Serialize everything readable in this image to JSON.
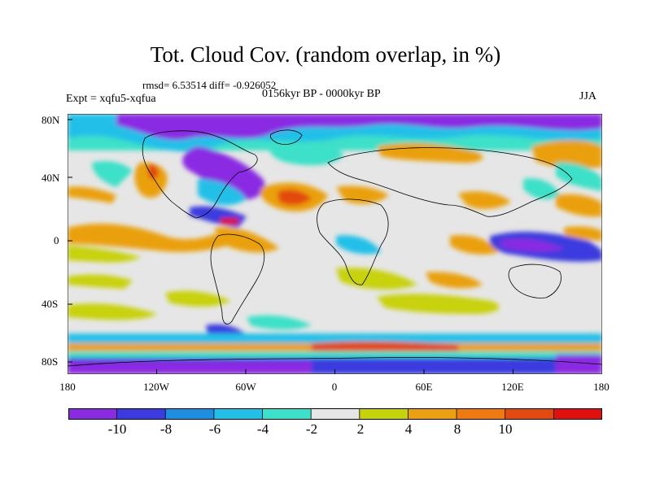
{
  "title": "Tot. Cloud Cov. (random overlap, in %)",
  "stats_line": "rmsd= 6.53514 diff= -0.926052",
  "period_line": "0156kyr BP - 0000kyr BP",
  "experiment_line": "Expt = xqfu5-xqfua",
  "season": "JJA",
  "lat_ticks": [
    "80N",
    "40N",
    "0",
    "40S",
    "80S"
  ],
  "lon_ticks": [
    "180",
    "120W",
    "60W",
    "0",
    "60E",
    "120E",
    "180"
  ],
  "colorbar": {
    "colors": [
      "#8a2be2",
      "#3b3bdf",
      "#1e8fe0",
      "#22c0e8",
      "#3de0c8",
      "#e6e6e6",
      "#c8d20a",
      "#eaa010",
      "#f07a12",
      "#e24a10",
      "#e01010"
    ],
    "tick_labels": [
      "-10",
      "-8",
      "-6",
      "-4",
      "-2",
      "2",
      "4",
      "8",
      "10"
    ]
  }
}
